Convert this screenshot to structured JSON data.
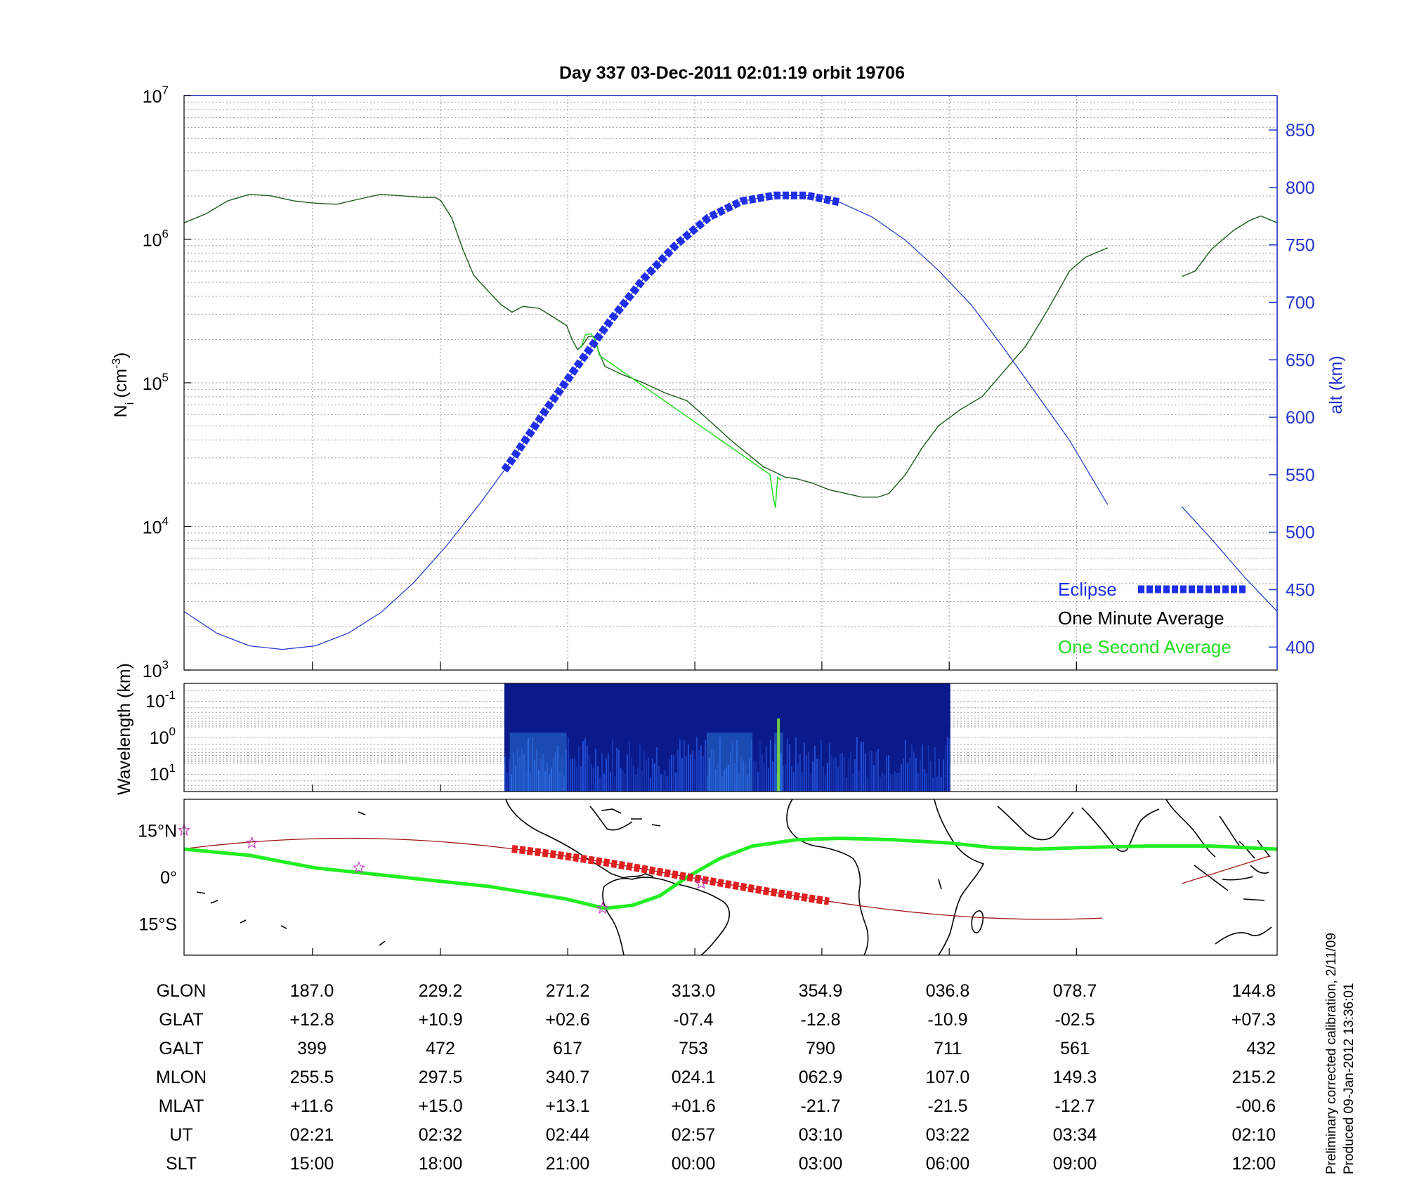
{
  "title": "Day 337  03-Dec-2011 02:01:19   orbit 19706",
  "chart_data": [
    {
      "type": "line",
      "panel": "density",
      "ylabel_left": "N",
      "ylabel_left_sub": "i",
      "ylabel_left_unit": "(cm",
      "ylabel_left_unit_sup": "-3",
      "ylabel_right": "alt (km)",
      "y_left_scale": "log",
      "y_left_ticks": [
        {
          "value": 1000,
          "base": "10",
          "exp": "3"
        },
        {
          "value": 10000,
          "base": "10",
          "exp": "4"
        },
        {
          "value": 100000,
          "base": "10",
          "exp": "5"
        },
        {
          "value": 1000000,
          "base": "10",
          "exp": "6"
        },
        {
          "value": 10000000,
          "base": "10",
          "exp": "7"
        }
      ],
      "y_left_range": [
        1000,
        10000000
      ],
      "y_right_ticks": [
        "400",
        "450",
        "500",
        "550",
        "600",
        "650",
        "700",
        "750",
        "800",
        "850"
      ],
      "y_right_range": [
        380,
        880
      ],
      "x_range": [
        0,
        1
      ],
      "grid": true,
      "legend_position": "bottom-right",
      "legend": [
        {
          "label": "Eclipse",
          "color": "#1f2fe8",
          "style": "thick-dashed"
        },
        {
          "label": "One Minute Average",
          "color": "#000000",
          "style": "line"
        },
        {
          "label": "One Second Average",
          "color": "#22dd22",
          "style": "line"
        }
      ],
      "series": [
        {
          "name": "One Minute Average",
          "color": "#1a5c1a",
          "points": [
            [
              0.0,
              1300000
            ],
            [
              0.02,
              1500000
            ],
            [
              0.04,
              1850000
            ],
            [
              0.06,
              2050000
            ],
            [
              0.08,
              2000000
            ],
            [
              0.1,
              1850000
            ],
            [
              0.12,
              1780000
            ],
            [
              0.14,
              1750000
            ],
            [
              0.16,
              1900000
            ],
            [
              0.18,
              2050000
            ],
            [
              0.2,
              2000000
            ],
            [
              0.22,
              1950000
            ],
            [
              0.23,
              1950000
            ],
            [
              0.235,
              1850000
            ],
            [
              0.245,
              1400000
            ],
            [
              0.255,
              850000
            ],
            [
              0.265,
              560000
            ],
            [
              0.28,
              420000
            ],
            [
              0.29,
              350000
            ],
            [
              0.3,
              310000
            ],
            [
              0.31,
              340000
            ],
            [
              0.325,
              330000
            ],
            [
              0.34,
              280000
            ],
            [
              0.35,
              250000
            ],
            [
              0.355,
              200000
            ],
            [
              0.36,
              170000
            ],
            [
              0.365,
              185000
            ],
            [
              0.37,
              210000
            ],
            [
              0.375,
              210000
            ],
            [
              0.38,
              160000
            ],
            [
              0.385,
              130000
            ],
            [
              0.4,
              115000
            ],
            [
              0.42,
              100000
            ],
            [
              0.44,
              85000
            ],
            [
              0.46,
              75000
            ],
            [
              0.48,
              55000
            ],
            [
              0.5,
              40000
            ],
            [
              0.52,
              30000
            ],
            [
              0.53,
              26000
            ],
            [
              0.54,
              24000
            ],
            [
              0.55,
              22000
            ],
            [
              0.56,
              21500
            ],
            [
              0.575,
              20000
            ],
            [
              0.59,
              18000
            ],
            [
              0.605,
              17000
            ],
            [
              0.62,
              16000
            ],
            [
              0.635,
              16000
            ],
            [
              0.645,
              17000
            ],
            [
              0.66,
              23000
            ],
            [
              0.675,
              35000
            ],
            [
              0.69,
              50000
            ],
            [
              0.71,
              65000
            ],
            [
              0.73,
              80000
            ],
            [
              0.75,
              120000
            ],
            [
              0.77,
              180000
            ],
            [
              0.79,
              320000
            ],
            [
              0.81,
              600000
            ],
            [
              0.825,
              750000
            ],
            [
              0.845,
              870000
            ]
          ]
        },
        {
          "name": "One Minute Average (segment 2)",
          "color": "#1a5c1a",
          "points": [
            [
              0.913,
              550000
            ],
            [
              0.925,
              600000
            ],
            [
              0.94,
              850000
            ],
            [
              0.96,
              1150000
            ],
            [
              0.975,
              1350000
            ],
            [
              0.985,
              1450000
            ],
            [
              1.0,
              1300000
            ]
          ]
        },
        {
          "name": "One Second Average",
          "color": "#22dd22",
          "points": [
            [
              0.363,
              175000
            ],
            [
              0.367,
              215000
            ],
            [
              0.372,
              220000
            ],
            [
              0.376,
              200000
            ],
            [
              0.38,
              155000
            ],
            [
              0.536,
              23000
            ],
            [
              0.539,
              16000
            ],
            [
              0.541,
              13500
            ],
            [
              0.543,
              22000
            ],
            [
              0.546,
              21000
            ]
          ]
        },
        {
          "name": "alt (km)",
          "axis": "right",
          "color": "#2233cc",
          "points": [
            [
              0.0,
              431
            ],
            [
              0.03,
              412
            ],
            [
              0.06,
              401
            ],
            [
              0.09,
              398
            ],
            [
              0.12,
              401
            ],
            [
              0.15,
              412
            ],
            [
              0.18,
              430
            ],
            [
              0.21,
              456
            ],
            [
              0.24,
              488
            ],
            [
              0.27,
              524
            ],
            [
              0.3,
              563
            ],
            [
              0.33,
              605
            ],
            [
              0.36,
              645
            ],
            [
              0.39,
              684
            ],
            [
              0.42,
              720
            ],
            [
              0.45,
              750
            ],
            [
              0.48,
              774
            ],
            [
              0.51,
              788
            ],
            [
              0.54,
              793
            ],
            [
              0.57,
              793
            ],
            [
              0.6,
              787
            ],
            [
              0.63,
              774
            ],
            [
              0.66,
              754
            ],
            [
              0.69,
              728
            ],
            [
              0.72,
              698
            ],
            [
              0.75,
              660
            ],
            [
              0.78,
              620
            ],
            [
              0.81,
              580
            ],
            [
              0.845,
              524
            ]
          ]
        },
        {
          "name": "alt (km) (segment 2)",
          "axis": "right",
          "color": "#2233cc",
          "points": [
            [
              0.913,
              522
            ],
            [
              0.94,
              494
            ],
            [
              0.97,
              461
            ],
            [
              1.0,
              431
            ]
          ]
        }
      ],
      "eclipse_interval": [
        0.293,
        0.6
      ]
    },
    {
      "type": "heatmap",
      "panel": "spectrogram",
      "ylabel": "Wavelength (km)",
      "y_ticks": [
        {
          "base": "10",
          "exp": "-1"
        },
        {
          "base": "10",
          "exp": "0"
        },
        {
          "base": "10",
          "exp": "1"
        }
      ],
      "data_interval": [
        0.293,
        0.701
      ]
    },
    {
      "type": "map",
      "panel": "ground-track",
      "y_ticks": [
        "15°N",
        "0°",
        "15°S"
      ],
      "lon_range": [
        187,
        400
      ],
      "lat_range": [
        -25,
        25
      ]
    }
  ],
  "table": {
    "rows": [
      {
        "label": "GLON",
        "values": [
          "187.0",
          "229.2",
          "271.2",
          "313.0",
          "354.9",
          "036.8",
          "078.7",
          "144.8"
        ]
      },
      {
        "label": "GLAT",
        "values": [
          "+12.8",
          "+10.9",
          "+02.6",
          "-07.4",
          "-12.8",
          "-10.9",
          "-02.5",
          "+07.3"
        ]
      },
      {
        "label": "GALT",
        "values": [
          "399",
          "472",
          "617",
          "753",
          "790",
          "711",
          "561",
          "432"
        ]
      },
      {
        "label": "MLON",
        "values": [
          "255.5",
          "297.5",
          "340.7",
          "024.1",
          "062.9",
          "107.0",
          "149.3",
          "215.2"
        ]
      },
      {
        "label": "MLAT",
        "values": [
          "+11.6",
          "+15.0",
          "+13.1",
          "+01.6",
          "-21.7",
          "-21.5",
          "-12.7",
          "-00.6"
        ]
      },
      {
        "label": "UT",
        "values": [
          "02:21",
          "02:32",
          "02:44",
          "02:57",
          "03:10",
          "03:22",
          "03:34",
          "02:10"
        ]
      },
      {
        "label": "SLT",
        "values": [
          "15:00",
          "18:00",
          "21:00",
          "00:00",
          "03:00",
          "06:00",
          "09:00",
          "12:00"
        ]
      }
    ]
  },
  "footnote": {
    "line1": "Preliminary corrected calibration, 2/11/09",
    "line2": "Produced 09-Jan-2012 13:36:01"
  },
  "colors": {
    "altitude": "#2233cc",
    "eclipse": "#1f2fe8",
    "minute_avg": "#1a5c1a",
    "second_avg": "#22dd22",
    "track_green": "#22ee22",
    "track_red": "#e02020",
    "track_thin": "#a01818",
    "spectrogram_bg": "#0a1a8a"
  }
}
